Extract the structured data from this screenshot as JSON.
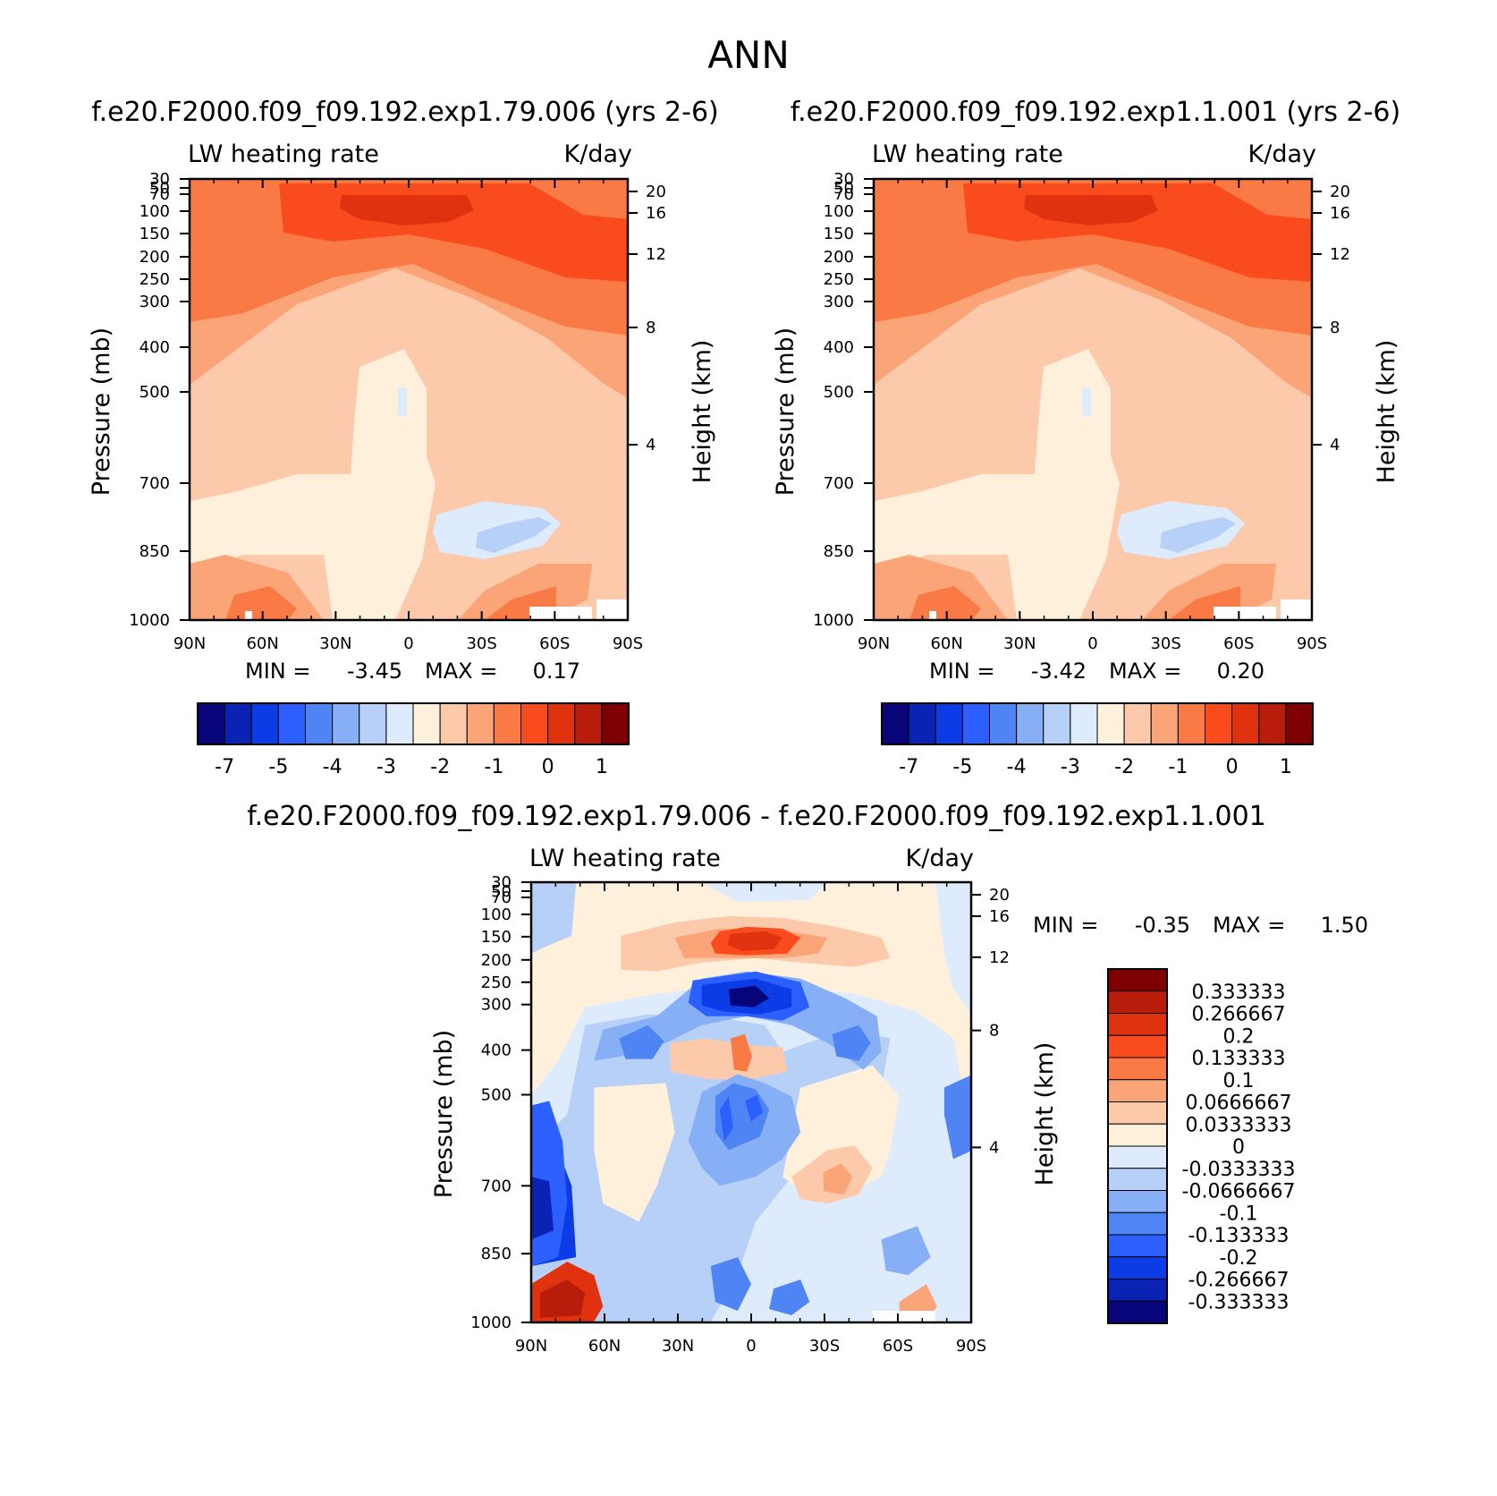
{
  "figure": {
    "title": "ANN",
    "colors": {
      "cb16": [
        "#08057a",
        "#0a23b4",
        "#0c3ce6",
        "#2b5fff",
        "#4f84f5",
        "#86aff5",
        "#b7d0f8",
        "#ddebfc",
        "#fff0dc",
        "#fcc9ab",
        "#fba478",
        "#fa7a46",
        "#fa4b1e",
        "#e0320f",
        "#b81c0a",
        "#7e0000"
      ],
      "cb14": [
        "#7e0000",
        "#b81c0a",
        "#e0320f",
        "#fa4b1e",
        "#fa7a46",
        "#fba478",
        "#fcc9ab",
        "#fff0dc",
        "#ddebfc",
        "#b7d0f8",
        "#86aff5",
        "#4f84f5",
        "#2b5fff",
        "#0c3ce6",
        "#0a23b4",
        "#08057a"
      ]
    }
  },
  "chart_data": [
    {
      "type": "heatmap",
      "subtitle": "f.e20.F2000.f09_f09.192.exp1.79.006 (yrs 2-6)",
      "variable": "LW heating rate",
      "units": "K/day",
      "ylabel": "Pressure (mb)",
      "ylabel_right": "Height (km)",
      "x_ticks": [
        "90N",
        "60N",
        "30N",
        "0",
        "30S",
        "60S",
        "90S"
      ],
      "y_ticks": [
        "30",
        "50",
        "70",
        "100",
        "150",
        "200",
        "250",
        "300",
        "400",
        "500",
        "700",
        "850",
        "1000"
      ],
      "y_ticks_right": [
        "20",
        "16",
        "12",
        "8",
        "4"
      ],
      "min_label": "MIN =",
      "min_value": "-3.45",
      "max_label": "MAX =",
      "max_value": "0.17",
      "colorbar_ticks": [
        "-7",
        "-5",
        "-4",
        "-3",
        "-2",
        "-1",
        "0",
        "1"
      ]
    },
    {
      "type": "heatmap",
      "subtitle": "f.e20.F2000.f09_f09.192.exp1.1.001 (yrs 2-6)",
      "variable": "LW heating rate",
      "units": "K/day",
      "ylabel": "Pressure (mb)",
      "ylabel_right": "Height (km)",
      "x_ticks": [
        "90N",
        "60N",
        "30N",
        "0",
        "30S",
        "60S",
        "90S"
      ],
      "y_ticks": [
        "30",
        "50",
        "70",
        "100",
        "150",
        "200",
        "250",
        "300",
        "400",
        "500",
        "700",
        "850",
        "1000"
      ],
      "y_ticks_right": [
        "20",
        "16",
        "12",
        "8",
        "4"
      ],
      "min_label": "MIN =",
      "min_value": "-3.42",
      "max_label": "MAX =",
      "max_value": "0.20",
      "colorbar_ticks": [
        "-7",
        "-5",
        "-4",
        "-3",
        "-2",
        "-1",
        "0",
        "1"
      ]
    },
    {
      "type": "heatmap",
      "subtitle": "f.e20.F2000.f09_f09.192.exp1.79.006 - f.e20.F2000.f09_f09.192.exp1.1.001",
      "variable": "LW heating rate",
      "units": "K/day",
      "ylabel": "Pressure (mb)",
      "ylabel_right": "Height (km)",
      "x_ticks": [
        "90N",
        "60N",
        "30N",
        "0",
        "30S",
        "60S",
        "90S"
      ],
      "y_ticks": [
        "30",
        "50",
        "70",
        "100",
        "150",
        "200",
        "250",
        "300",
        "400",
        "500",
        "700",
        "850",
        "1000"
      ],
      "y_ticks_right": [
        "20",
        "16",
        "12",
        "8",
        "4"
      ],
      "min_label": "MIN =",
      "min_value": "-0.35",
      "max_label": "MAX =",
      "max_value": "1.50",
      "colorbar_levels": [
        "0.333333",
        "0.266667",
        "0.2",
        "0.133333",
        "0.1",
        "0.0666667",
        "0.0333333",
        "0",
        "-0.0333333",
        "-0.0666667",
        "-0.1",
        "-0.133333",
        "-0.2",
        "-0.266667",
        "-0.333333"
      ]
    }
  ]
}
